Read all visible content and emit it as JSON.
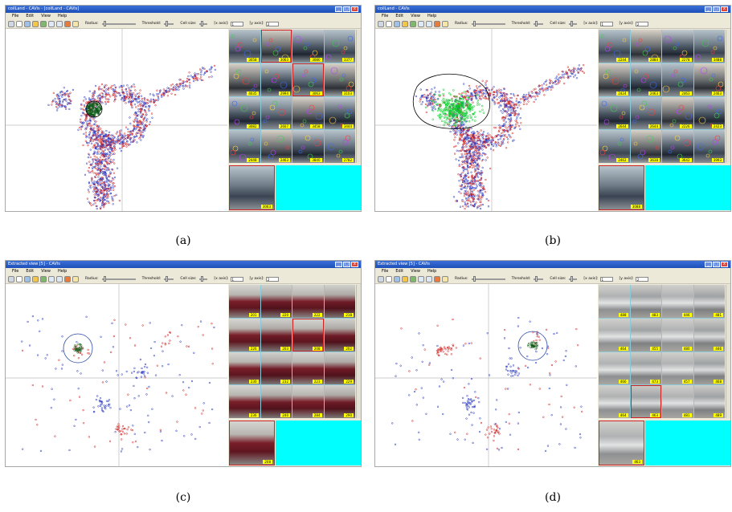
{
  "colors": {
    "accent": "#2255cc",
    "cluster_red": "#d11a1a",
    "cluster_blue": "#2030c0",
    "highlight_green": "#00cc22",
    "label_yellow": "#ffff00",
    "cyan": "#00ffff"
  },
  "panels": [
    {
      "caption": "(a)",
      "title": "coilLand - CAVis - [coilLand - CAVis]",
      "menu": [
        "File",
        "Edit",
        "View",
        "Help"
      ],
      "toolbar": {
        "radius_label": "Radius:",
        "threshold_label": "Threshold:",
        "cellsize_label": "Cell size:",
        "xaxis_label": "[x axis]:",
        "xaxis_value": "1",
        "yaxis_label": "[y axis]:",
        "yaxis_value": "2"
      },
      "theme": "car",
      "labels": [
        "3058",
        "3063",
        "3080",
        "3377",
        "4035",
        "2994",
        "3063",
        "3103",
        "3082",
        "2607",
        "3458",
        "3444",
        "2448",
        "2463",
        "3840",
        "2782"
      ],
      "selected_label": "3063"
    },
    {
      "caption": "(b)",
      "title": "coilLand - CAVis",
      "menu": [
        "File",
        "Edit",
        "View",
        "Help"
      ],
      "toolbar": {
        "radius_label": "Radius:",
        "threshold_label": "Threshold:",
        "cellsize_label": "Cell size:",
        "xaxis_label": "[x axis]:",
        "xaxis_value": "1",
        "yaxis_label": "[y axis]:",
        "yaxis_value": "2"
      },
      "theme": "car",
      "labels": [
        "2244",
        "2884",
        "2278",
        "3488",
        "2424",
        "2463",
        "2463",
        "2463",
        "2644",
        "2644",
        "2226",
        "2423",
        "2462",
        "3638",
        "3642",
        "3993"
      ],
      "selected_label": "3088"
    },
    {
      "caption": "(c)",
      "title": "Extracted view [5] - CAVis",
      "menu": [
        "File",
        "Edit",
        "View",
        "Help"
      ],
      "toolbar": {
        "radius_label": "Radius:",
        "threshold_label": "Threshold:",
        "cellsize_label": "Cell size:",
        "xaxis_label": "[x axis]:",
        "xaxis_value": "1",
        "yaxis_label": "[y axis]:",
        "yaxis_value": "2"
      },
      "theme": "maroon",
      "labels": [
        "201",
        "220",
        "222",
        "218",
        "226",
        "203",
        "208",
        "202",
        "230",
        "232",
        "223",
        "229",
        "236",
        "240",
        "284",
        "290"
      ],
      "selected_label": "208"
    },
    {
      "caption": "(d)",
      "title": "Extracted view [5] - CAVis",
      "menu": [
        "File",
        "Edit",
        "View",
        "Help"
      ],
      "toolbar": {
        "radius_label": "Radius:",
        "threshold_label": "Threshold:",
        "cellsize_label": "Cell size:",
        "xaxis_label": "[x axis]:",
        "xaxis_value": "1",
        "yaxis_label": "[y axis]:",
        "yaxis_value": "2"
      },
      "theme": "silver",
      "labels": [
        "488",
        "483",
        "446",
        "481",
        "464",
        "455",
        "480",
        "446",
        "466",
        "473",
        "457",
        "468",
        "464",
        "463",
        "481",
        "489"
      ],
      "selected_label": "463"
    }
  ]
}
